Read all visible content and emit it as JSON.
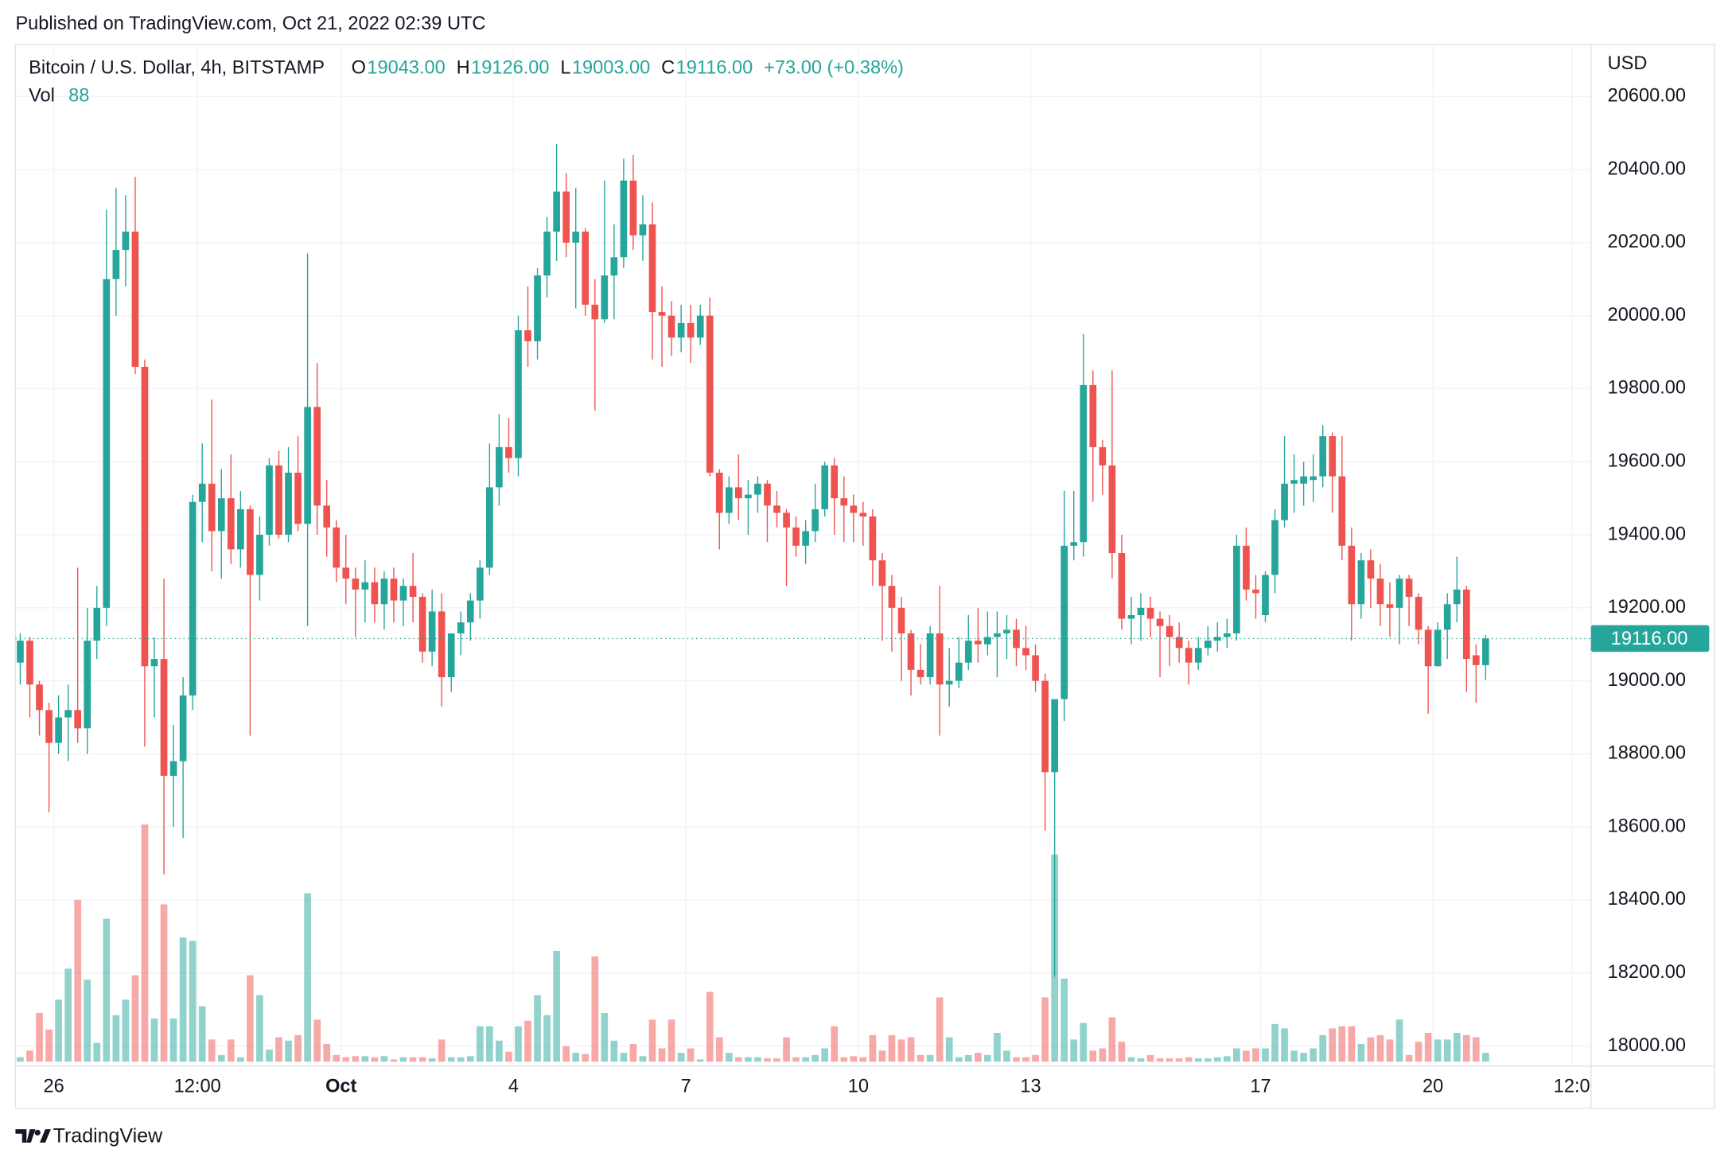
{
  "page": {
    "published": "Published on TradingView.com, Oct 21, 2022 02:39 UTC",
    "brand": "TradingView"
  },
  "chart_data": {
    "type": "candlestick",
    "symbol": "Bitcoin / U.S. Dollar, 4h, BITSTAMP",
    "currency": "USD",
    "legend": {
      "fields": [
        {
          "key": "O",
          "value": "19043.00"
        },
        {
          "key": "H",
          "value": "19126.00"
        },
        {
          "key": "L",
          "value": "19003.00"
        },
        {
          "key": "C",
          "value": "19116.00"
        }
      ],
      "change": "+73.00 (+0.38%)",
      "volume_name": "Vol"
    },
    "last_price_label": "19116.00",
    "up_color": "#26a69a",
    "down_color": "#ef5350",
    "grid": true,
    "open": [
      19050,
      19110,
      18990,
      18920,
      18830,
      18900,
      18920,
      18870,
      19110,
      19200,
      20100,
      20180,
      20230,
      19860,
      19040,
      19060,
      18740,
      18780,
      18960,
      19490,
      19540,
      19410,
      19500,
      19360,
      19470,
      19290,
      19400,
      19590,
      19400,
      19570,
      19430,
      19750,
      19480,
      19420,
      19310,
      19280,
      19250,
      19270,
      19210,
      19280,
      19220,
      19260,
      19230,
      19080,
      19190,
      19010,
      19130,
      19160,
      19220,
      19310,
      19530,
      19640,
      19610,
      19960,
      19930,
      20110,
      20230,
      20340,
      20200,
      20230,
      20030,
      19990,
      20110,
      20160,
      20370,
      20220,
      20250,
      20010,
      20000,
      19940,
      19980,
      19940,
      20000,
      19570,
      19460,
      19530,
      19500,
      19510,
      19540,
      19480,
      19460,
      19420,
      19370,
      19410,
      19470,
      19590,
      19500,
      19480,
      19460,
      19450,
      19330,
      19260,
      19200,
      19130,
      19030,
      19010,
      19130,
      18990,
      19000,
      19050,
      19110,
      19100,
      19120,
      19130,
      19140,
      19090,
      19070,
      19000,
      18750,
      18950,
      19370,
      19380,
      19810,
      19640,
      19590,
      19350,
      19170,
      19180,
      19200,
      19170,
      19150,
      19120,
      19090,
      19050,
      19090,
      19110,
      19120,
      19130,
      19370,
      19250,
      19180,
      19290,
      19440,
      19540,
      19540,
      19550,
      19560,
      19670,
      19560,
      19370,
      19210,
      19330,
      19280,
      19210,
      19200,
      19280,
      19230,
      19140,
      19040,
      19140,
      19210,
      19250,
      19070,
      19043
    ],
    "high": [
      19130,
      19120,
      19000,
      18940,
      18960,
      18990,
      19310,
      19200,
      19260,
      20290,
      20350,
      20330,
      20380,
      19880,
      19120,
      19280,
      18880,
      19010,
      19510,
      19650,
      19770,
      19580,
      19620,
      19520,
      19480,
      19450,
      19610,
      19630,
      19640,
      19670,
      20170,
      19870,
      19550,
      19440,
      19400,
      19310,
      19330,
      19310,
      19300,
      19310,
      19280,
      19350,
      19240,
      19250,
      19240,
      19130,
      19190,
      19240,
      19330,
      19650,
      19730,
      19720,
      20000,
      20080,
      20130,
      20270,
      20470,
      20390,
      20350,
      20240,
      20100,
      20370,
      20250,
      20430,
      20440,
      20330,
      20310,
      20080,
      20040,
      20030,
      20030,
      20030,
      20050,
      19580,
      19560,
      19620,
      19550,
      19560,
      19550,
      19520,
      19470,
      19450,
      19440,
      19540,
      19600,
      19610,
      19560,
      19510,
      19490,
      19470,
      19350,
      19290,
      19230,
      19140,
      19100,
      19150,
      19260,
      19090,
      19120,
      19180,
      19200,
      19190,
      19190,
      19180,
      19170,
      19150,
      19100,
      19020,
      18950,
      19520,
      19520,
      19950,
      19850,
      19660,
      19850,
      19400,
      19230,
      19240,
      19230,
      19190,
      19180,
      19160,
      19110,
      19120,
      19150,
      19160,
      19170,
      19400,
      19420,
      19290,
      19300,
      19470,
      19670,
      19620,
      19600,
      19620,
      19700,
      19680,
      19670,
      19420,
      19350,
      19360,
      19320,
      19270,
      19290,
      19290,
      19240,
      19150,
      19160,
      19240,
      19340,
      19260,
      19100,
      19126
    ],
    "low": [
      18990,
      18900,
      18850,
      18640,
      18800,
      18780,
      18830,
      18800,
      19060,
      19150,
      20000,
      20080,
      19840,
      18820,
      18900,
      18470,
      18600,
      18570,
      18920,
      19380,
      19300,
      19280,
      19320,
      19310,
      18850,
      19220,
      19370,
      19390,
      19380,
      19410,
      19150,
      19400,
      19340,
      19270,
      19210,
      19120,
      19160,
      19160,
      19140,
      19160,
      19150,
      19160,
      19050,
      19040,
      18930,
      18970,
      19070,
      19110,
      19170,
      19290,
      19480,
      19570,
      19560,
      19860,
      19880,
      20050,
      20150,
      20160,
      20020,
      20000,
      19740,
      19980,
      19990,
      20130,
      20180,
      20150,
      19880,
      19860,
      19890,
      19900,
      19870,
      19920,
      19560,
      19360,
      19430,
      19440,
      19400,
      19460,
      19380,
      19420,
      19260,
      19340,
      19320,
      19380,
      19450,
      19400,
      19380,
      19380,
      19370,
      19260,
      19110,
      19080,
      19000,
      18960,
      18990,
      18990,
      18850,
      18930,
      18980,
      19030,
      19050,
      19070,
      19010,
      19060,
      19040,
      19030,
      18970,
      18590,
      18190,
      18890,
      19330,
      19340,
      19490,
      19510,
      19280,
      19140,
      19100,
      19110,
      19120,
      19010,
      19040,
      19050,
      18990,
      19030,
      19070,
      19080,
      19090,
      19110,
      19220,
      19170,
      19160,
      19240,
      19420,
      19460,
      19480,
      19490,
      19530,
      19460,
      19330,
      19110,
      19170,
      19200,
      19150,
      19120,
      19100,
      19150,
      19100,
      18910,
      19040,
      19060,
      19160,
      18970,
      18940,
      19003
    ],
    "close": [
      19110,
      18990,
      18920,
      18830,
      18900,
      18920,
      18870,
      19110,
      19200,
      20100,
      20180,
      20230,
      19860,
      19040,
      19060,
      18740,
      18780,
      18960,
      19490,
      19540,
      19410,
      19500,
      19360,
      19470,
      19290,
      19400,
      19590,
      19400,
      19570,
      19430,
      19750,
      19480,
      19420,
      19310,
      19280,
      19250,
      19270,
      19210,
      19280,
      19220,
      19260,
      19230,
      19080,
      19190,
      19010,
      19130,
      19160,
      19220,
      19310,
      19530,
      19640,
      19610,
      19960,
      19930,
      20110,
      20230,
      20340,
      20200,
      20230,
      20030,
      19990,
      20110,
      20160,
      20370,
      20220,
      20250,
      20010,
      20000,
      19940,
      19980,
      19940,
      20000,
      19570,
      19460,
      19530,
      19500,
      19510,
      19540,
      19480,
      19460,
      19420,
      19370,
      19410,
      19470,
      19590,
      19500,
      19480,
      19460,
      19450,
      19330,
      19260,
      19200,
      19130,
      19030,
      19010,
      19130,
      18990,
      19000,
      19050,
      19110,
      19100,
      19120,
      19130,
      19140,
      19090,
      19070,
      19000,
      18750,
      18950,
      19370,
      19380,
      19810,
      19640,
      19590,
      19350,
      19170,
      19180,
      19200,
      19170,
      19150,
      19120,
      19090,
      19050,
      19090,
      19110,
      19120,
      19130,
      19370,
      19250,
      19240,
      19290,
      19440,
      19540,
      19550,
      19560,
      19560,
      19670,
      19560,
      19370,
      19210,
      19330,
      19280,
      19210,
      19200,
      19280,
      19230,
      19140,
      19040,
      19140,
      19210,
      19250,
      19060,
      19043,
      19116
    ],
    "volume": [
      44,
      110,
      484,
      319,
      616,
      924,
      1606,
      814,
      187,
      1419,
      462,
      616,
      858,
      2354,
      429,
      1562,
      429,
      1232,
      1199,
      550,
      220,
      66,
      220,
      44,
      858,
      660,
      121,
      242,
      209,
      264,
      1672,
      418,
      176,
      66,
      44,
      55,
      55,
      44,
      55,
      22,
      44,
      44,
      44,
      33,
      220,
      44,
      44,
      55,
      352,
      352,
      209,
      99,
      352,
      407,
      660,
      462,
      1100,
      154,
      88,
      77,
      1045,
      484,
      209,
      88,
      176,
      55,
      418,
      132,
      418,
      88,
      132,
      22,
      693,
      242,
      88,
      44,
      44,
      44,
      33,
      33,
      242,
      44,
      44,
      66,
      132,
      352,
      44,
      55,
      44,
      264,
      110,
      264,
      220,
      242,
      66,
      66,
      638,
      242,
      44,
      66,
      88,
      66,
      286,
      110,
      44,
      44,
      66,
      638,
      2057,
      825,
      220,
      385,
      110,
      132,
      440,
      198,
      44,
      33,
      66,
      33,
      33,
      33,
      44,
      33,
      33,
      44,
      55,
      132,
      110,
      132,
      132,
      374,
      330,
      110,
      88,
      132,
      264,
      330,
      352,
      352,
      176,
      242,
      264,
      220,
      418,
      66,
      198,
      286,
      220,
      220,
      286,
      264,
      242,
      88
    ],
    "xlim": [
      -0.5,
      164
    ],
    "xticks": [
      {
        "value": 3.5,
        "label": "26"
      },
      {
        "value": 18.5,
        "label": "12:00"
      },
      {
        "value": 33.5,
        "label": "Oct"
      },
      {
        "value": 51.5,
        "label": "4"
      },
      {
        "value": 69.5,
        "label": "7"
      },
      {
        "value": 87.5,
        "label": "10"
      },
      {
        "value": 105.5,
        "label": "13"
      },
      {
        "value": 129.5,
        "label": "17"
      },
      {
        "value": 147.5,
        "label": "20"
      },
      {
        "value": 162,
        "label": "12:0"
      }
    ],
    "ylim": [
      17945,
      20743
    ],
    "yticks": [
      {
        "value": 18000,
        "label": "18000.00"
      },
      {
        "value": 18200,
        "label": "18200.00"
      },
      {
        "value": 18400,
        "label": "18400.00"
      },
      {
        "value": 18600,
        "label": "18600.00"
      },
      {
        "value": 18800,
        "label": "18800.00"
      },
      {
        "value": 19000,
        "label": "19000.00"
      },
      {
        "value": 19200,
        "label": "19200.00"
      },
      {
        "value": 19400,
        "label": "19400.00"
      },
      {
        "value": 19600,
        "label": "19600.00"
      },
      {
        "value": 19800,
        "label": "19800.00"
      },
      {
        "value": 20000,
        "label": "20000.00"
      },
      {
        "value": 20200,
        "label": "20200.00"
      },
      {
        "value": 20400,
        "label": "20400.00"
      },
      {
        "value": 20600,
        "label": "20600.00"
      }
    ]
  }
}
